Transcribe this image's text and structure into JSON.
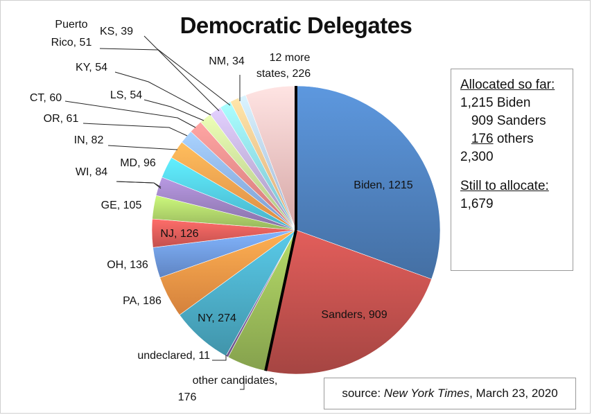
{
  "chart_data": {
    "type": "pie",
    "title": "Democratic Delegates",
    "slices": [
      {
        "label": "Biden, 1215",
        "value": 1215,
        "color": "#4f81bd"
      },
      {
        "label": "Sanders, 909",
        "value": 909,
        "color": "#c0504d"
      },
      {
        "label": "other candidates, 176",
        "value": 176,
        "color": "#9bbb59"
      },
      {
        "label": "undeclared, 11",
        "value": 11,
        "color": "#8064a2"
      },
      {
        "label": "NY, 274",
        "value": 274,
        "color": "#4bacc6"
      },
      {
        "label": "PA, 186",
        "value": 186,
        "color": "#f79646"
      },
      {
        "label": "OH, 136",
        "value": 136,
        "color": "#6f9ae2"
      },
      {
        "label": "NJ, 126",
        "value": 126,
        "color": "#e35d5a"
      },
      {
        "label": "GE, 105",
        "value": 105,
        "color": "#aed36a"
      },
      {
        "label": "WI, 84",
        "value": 84,
        "color": "#9c82c0"
      },
      {
        "label": "MD, 96",
        "value": 96,
        "color": "#52cbe8"
      },
      {
        "label": "IN, 82",
        "value": 82,
        "color": "#ffa14f"
      },
      {
        "label": "OR, 61",
        "value": 61,
        "color": "#8fb3ee"
      },
      {
        "label": "CT, 60",
        "value": 60,
        "color": "#f28c8a"
      },
      {
        "label": "LS, 54",
        "value": 54,
        "color": "#c9e39a"
      },
      {
        "label": "KY, 54",
        "value": 54,
        "color": "#c0b0da"
      },
      {
        "label": "Puerto Rico, 51",
        "value": 51,
        "color": "#90dcf0"
      },
      {
        "label": "KS, 39",
        "value": 39,
        "color": "#ffc38f"
      },
      {
        "label": "NM, 34",
        "value": 34,
        "color": "#b9cff4"
      },
      {
        "label": "12 more states, 226",
        "value": 226,
        "color": "#f8c1c0"
      }
    ]
  },
  "allocated_box": {
    "heading": "Allocated so far:",
    "line_biden": "1,215 Biden",
    "sanders_prefix": "   909 Sanders",
    "others_prefix": "   ",
    "others_number": "176",
    "others_suffix": " others",
    "total": "2,300",
    "still_heading": "Still to allocate:",
    "still_value": "1,679"
  },
  "source": {
    "prefix": "source: ",
    "publication": "New York Times",
    "suffix": ", March 23, 2020"
  }
}
